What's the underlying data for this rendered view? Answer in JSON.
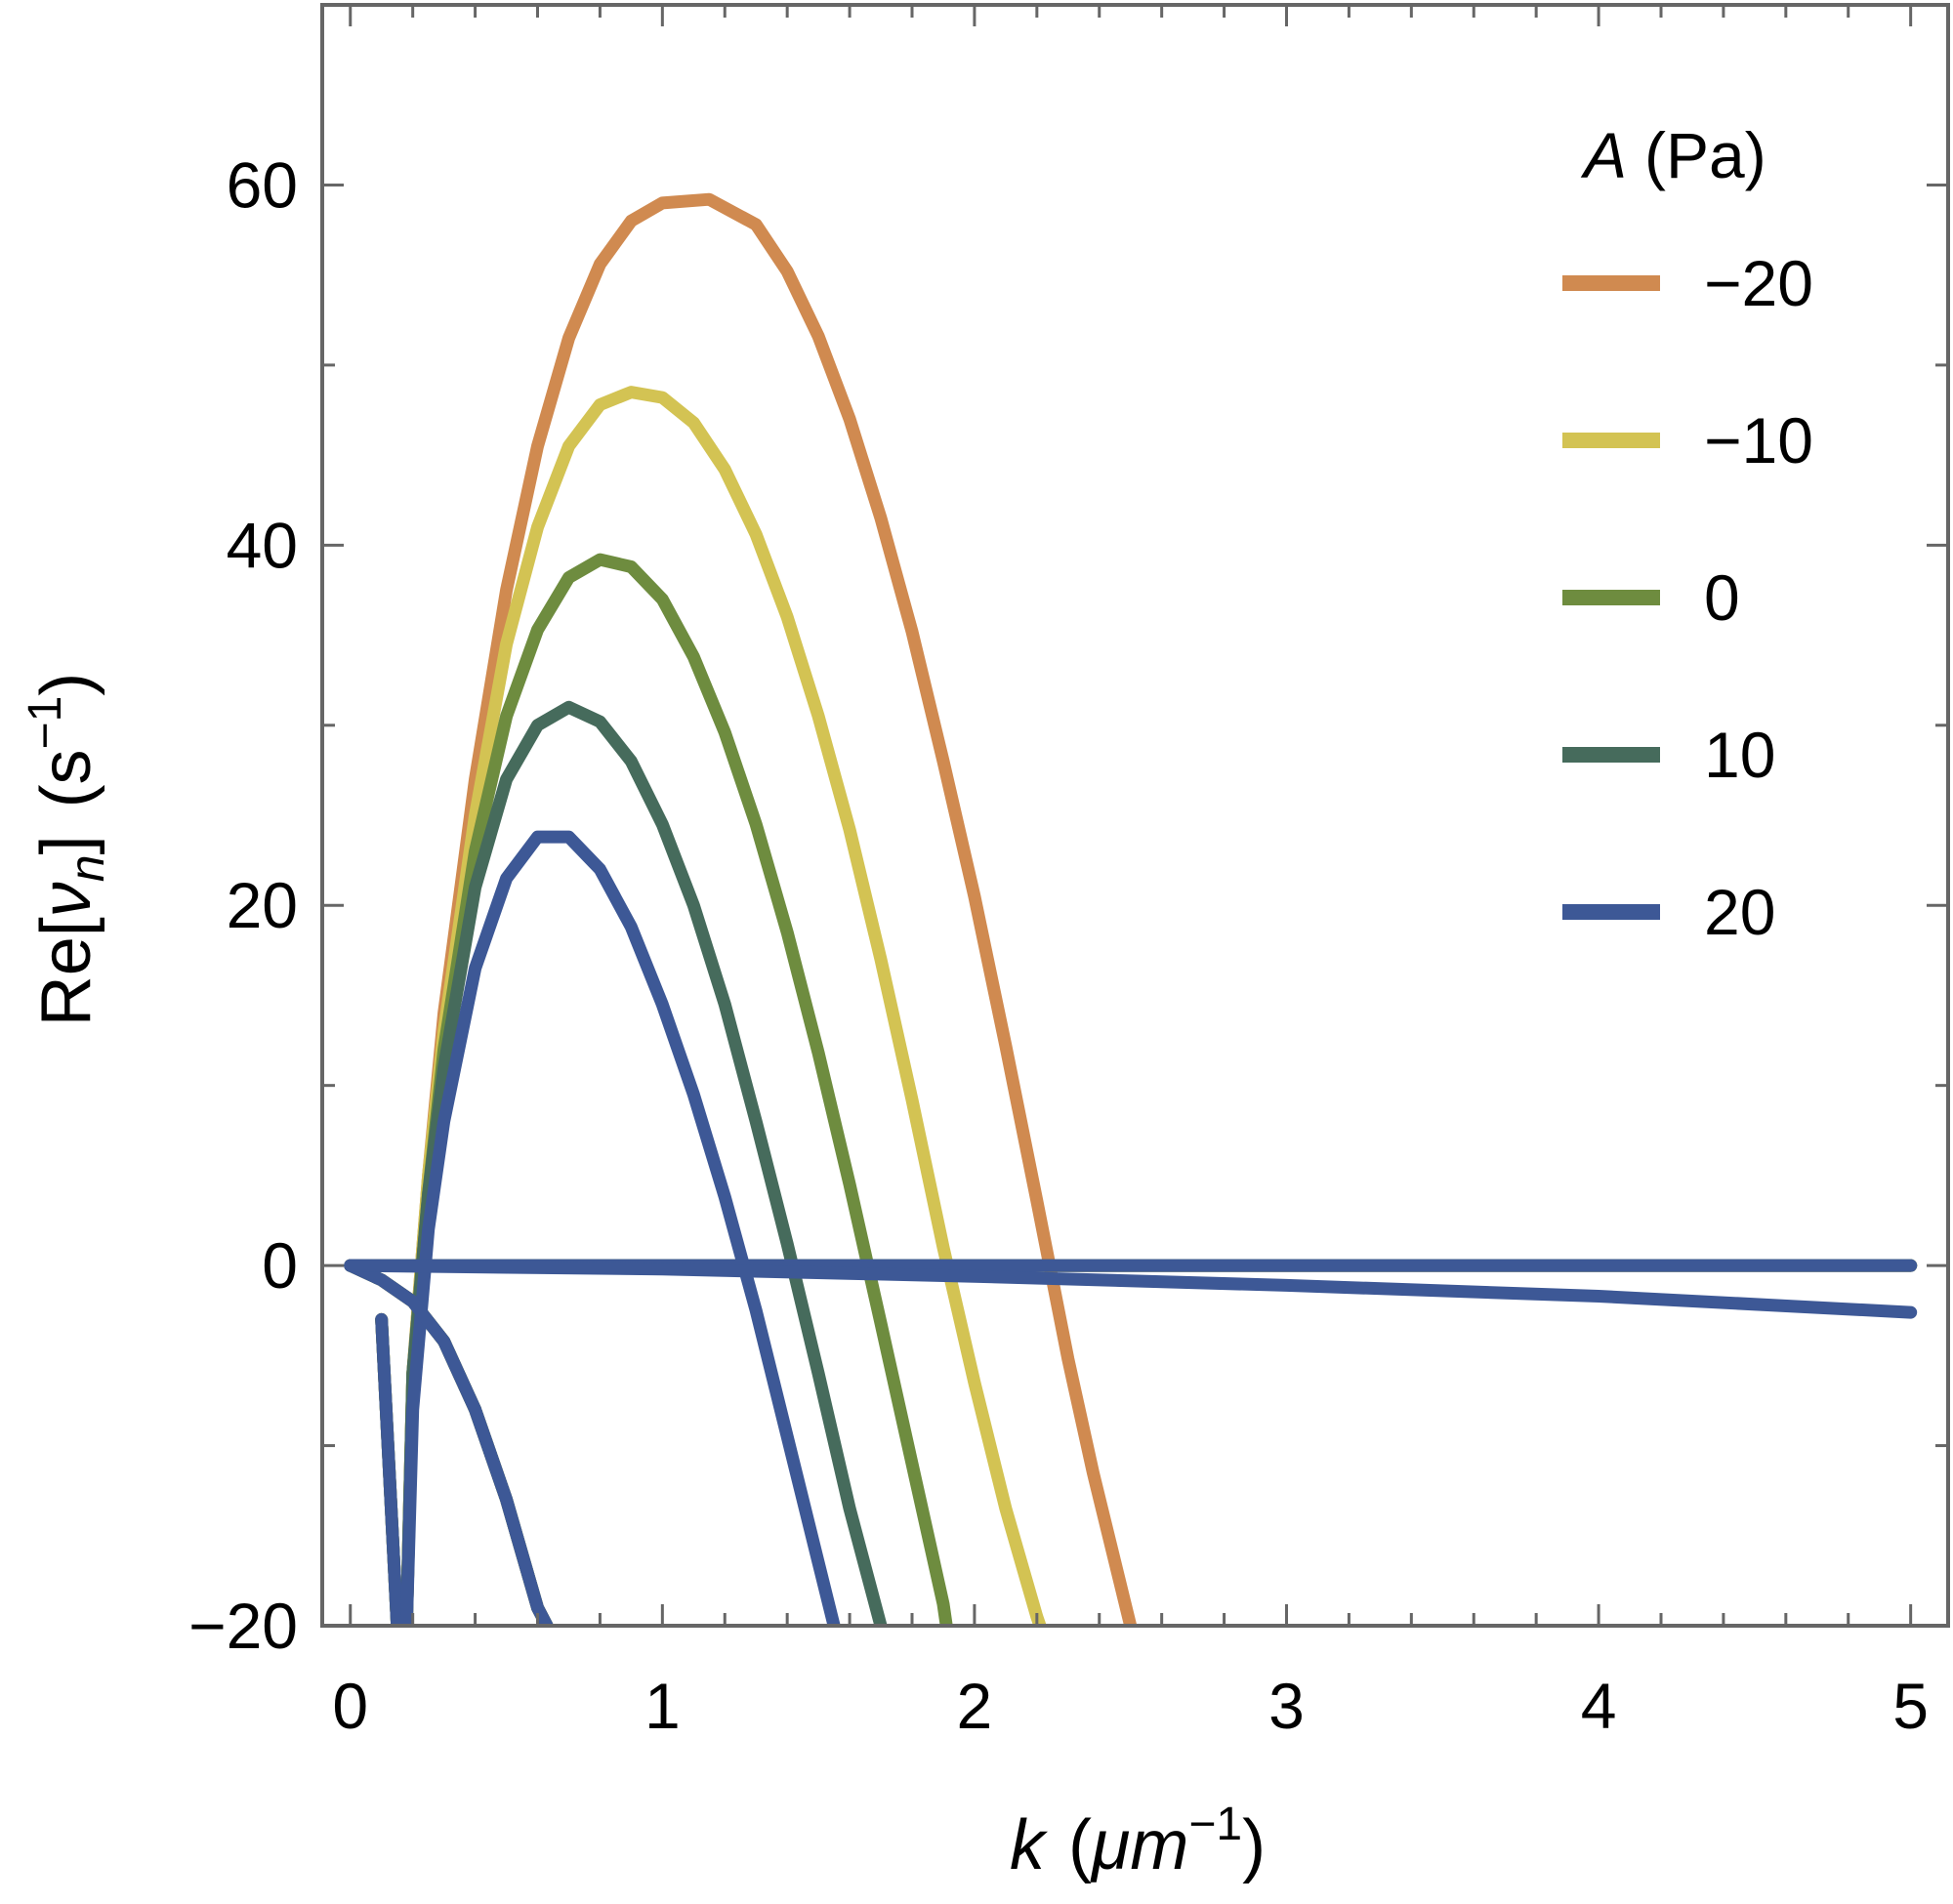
{
  "chart_data": {
    "type": "line",
    "xlabel": {
      "var": "k",
      "unit_prefix": "(",
      "unit": "μm",
      "exp": "−1",
      "unit_suffix": ")"
    },
    "ylabel": {
      "prefix": "Re[",
      "var": "ν",
      "sub": "n",
      "suffix": "]",
      "unit_prefix": "(s",
      "exp": "−1",
      "unit_suffix": ")"
    },
    "xlim": [
      -0.09,
      5.12
    ],
    "ylim": [
      -20,
      70
    ],
    "xticks": [
      "0",
      "1",
      "2",
      "3",
      "4",
      "5"
    ],
    "yticks": [
      "−20",
      "0",
      "20",
      "40",
      "60"
    ],
    "legend": {
      "title_var": "A",
      "title_unit": "(Pa)",
      "position": "top-right"
    },
    "series": [
      {
        "name": "−20",
        "A": -20,
        "color": "#d08a50",
        "branch1": [
          [
            0.1,
            -3
          ],
          [
            0.15,
            -20
          ]
        ],
        "branch2": [
          [
            0.18,
            -20
          ],
          [
            0.2,
            -6
          ],
          [
            0.25,
            5
          ],
          [
            0.3,
            14
          ],
          [
            0.4,
            27
          ],
          [
            0.5,
            37.5
          ],
          [
            0.6,
            45.5
          ],
          [
            0.7,
            51.5
          ],
          [
            0.8,
            55.6
          ],
          [
            0.9,
            58.0
          ],
          [
            1.0,
            59.0
          ],
          [
            1.15,
            59.2
          ],
          [
            1.3,
            57.8
          ],
          [
            1.4,
            55.2
          ],
          [
            1.5,
            51.6
          ],
          [
            1.6,
            47.0
          ],
          [
            1.7,
            41.5
          ],
          [
            1.8,
            35.2
          ],
          [
            1.9,
            28.0
          ],
          [
            2.0,
            20.5
          ],
          [
            2.1,
            12.2
          ],
          [
            2.2,
            3.6
          ],
          [
            2.3,
            -5.2
          ],
          [
            2.38,
            -11.5
          ],
          [
            2.5,
            -20
          ]
        ],
        "branch3": [
          [
            0.0,
            0
          ],
          [
            0.1,
            -0.8
          ],
          [
            0.2,
            -2.0
          ],
          [
            0.3,
            -4.2
          ],
          [
            0.4,
            -8.0
          ],
          [
            0.5,
            -13.0
          ],
          [
            0.6,
            -19.0
          ],
          [
            0.63,
            -20
          ]
        ],
        "branch4": [
          [
            0.0,
            0
          ],
          [
            5.0,
            0
          ]
        ]
      },
      {
        "name": "−10",
        "A": -10,
        "color": "#d3c353",
        "branch1": [
          [
            0.1,
            -3
          ],
          [
            0.15,
            -20
          ]
        ],
        "branch2": [
          [
            0.18,
            -20
          ],
          [
            0.2,
            -6
          ],
          [
            0.25,
            5
          ],
          [
            0.3,
            13
          ],
          [
            0.4,
            25
          ],
          [
            0.5,
            34.5
          ],
          [
            0.6,
            41
          ],
          [
            0.7,
            45.5
          ],
          [
            0.8,
            47.8
          ],
          [
            0.9,
            48.5
          ],
          [
            1.0,
            48.2
          ],
          [
            1.1,
            46.8
          ],
          [
            1.2,
            44.2
          ],
          [
            1.3,
            40.6
          ],
          [
            1.4,
            36.0
          ],
          [
            1.5,
            30.5
          ],
          [
            1.6,
            24.2
          ],
          [
            1.7,
            17.0
          ],
          [
            1.8,
            9.2
          ],
          [
            1.9,
            1.0
          ],
          [
            2.0,
            -6.5
          ],
          [
            2.1,
            -13.5
          ],
          [
            2.2,
            -19.5
          ],
          [
            2.21,
            -20
          ]
        ],
        "branch3": [
          [
            0.0,
            0
          ],
          [
            0.1,
            -0.8
          ],
          [
            0.2,
            -2.0
          ],
          [
            0.3,
            -4.2
          ],
          [
            0.4,
            -8.0
          ],
          [
            0.5,
            -13.0
          ],
          [
            0.6,
            -19.0
          ],
          [
            0.63,
            -20
          ]
        ],
        "branch4": [
          [
            0.0,
            0
          ],
          [
            5.0,
            0
          ]
        ]
      },
      {
        "name": "0",
        "A": 0,
        "color": "#6e8c3f",
        "branch1": [
          [
            0.1,
            -3
          ],
          [
            0.15,
            -20
          ]
        ],
        "branch2": [
          [
            0.18,
            -20
          ],
          [
            0.2,
            -6
          ],
          [
            0.25,
            4
          ],
          [
            0.3,
            12
          ],
          [
            0.4,
            23
          ],
          [
            0.5,
            30.5
          ],
          [
            0.6,
            35.3
          ],
          [
            0.7,
            38.2
          ],
          [
            0.8,
            39.2
          ],
          [
            0.9,
            38.8
          ],
          [
            1.0,
            37.0
          ],
          [
            1.1,
            33.8
          ],
          [
            1.2,
            29.6
          ],
          [
            1.3,
            24.5
          ],
          [
            1.4,
            18.5
          ],
          [
            1.5,
            11.8
          ],
          [
            1.6,
            4.5
          ],
          [
            1.7,
            -3.2
          ],
          [
            1.8,
            -11.0
          ],
          [
            1.9,
            -18.8
          ],
          [
            1.91,
            -20
          ]
        ],
        "branch3": [
          [
            0.0,
            0
          ],
          [
            0.1,
            -0.8
          ],
          [
            0.2,
            -2.0
          ],
          [
            0.3,
            -4.2
          ],
          [
            0.4,
            -8.0
          ],
          [
            0.5,
            -13.0
          ],
          [
            0.6,
            -19.0
          ],
          [
            0.63,
            -20
          ]
        ],
        "branch4": [
          [
            0.0,
            0
          ],
          [
            5.0,
            0
          ]
        ]
      },
      {
        "name": "10",
        "A": 10,
        "color": "#466b5c",
        "branch1": [
          [
            0.1,
            -3
          ],
          [
            0.15,
            -20
          ]
        ],
        "branch2": [
          [
            0.18,
            -20
          ],
          [
            0.2,
            -6
          ],
          [
            0.25,
            4
          ],
          [
            0.3,
            11
          ],
          [
            0.4,
            21
          ],
          [
            0.5,
            27
          ],
          [
            0.6,
            30.0
          ],
          [
            0.7,
            31.0
          ],
          [
            0.8,
            30.2
          ],
          [
            0.9,
            28.0
          ],
          [
            1.0,
            24.5
          ],
          [
            1.1,
            20.0
          ],
          [
            1.2,
            14.5
          ],
          [
            1.3,
            8.0
          ],
          [
            1.4,
            1.2
          ],
          [
            1.5,
            -6.0
          ],
          [
            1.6,
            -13.5
          ],
          [
            1.7,
            -20
          ]
        ],
        "branch3": [
          [
            0.0,
            0
          ],
          [
            0.1,
            -0.8
          ],
          [
            0.2,
            -2.0
          ],
          [
            0.3,
            -4.2
          ],
          [
            0.4,
            -8.0
          ],
          [
            0.5,
            -13.0
          ],
          [
            0.6,
            -19.0
          ],
          [
            0.63,
            -20
          ]
        ],
        "branch4": [
          [
            0.0,
            0
          ],
          [
            5.0,
            0
          ]
        ]
      },
      {
        "name": "20",
        "A": 20,
        "color": "#3d5896",
        "branch1": [
          [
            0.1,
            -3
          ],
          [
            0.15,
            -20
          ]
        ],
        "branch2": [
          [
            0.18,
            -20
          ],
          [
            0.2,
            -8
          ],
          [
            0.25,
            2
          ],
          [
            0.3,
            8
          ],
          [
            0.4,
            16.5
          ],
          [
            0.5,
            21.5
          ],
          [
            0.6,
            23.8
          ],
          [
            0.7,
            23.8
          ],
          [
            0.8,
            22.0
          ],
          [
            0.9,
            18.8
          ],
          [
            1.0,
            14.5
          ],
          [
            1.1,
            9.5
          ],
          [
            1.2,
            3.8
          ],
          [
            1.3,
            -2.5
          ],
          [
            1.4,
            -9.5
          ],
          [
            1.5,
            -16.5
          ],
          [
            1.55,
            -20
          ]
        ],
        "branch3": [
          [
            0.0,
            0
          ],
          [
            0.1,
            -0.8
          ],
          [
            0.2,
            -2.0
          ],
          [
            0.3,
            -4.2
          ],
          [
            0.4,
            -8.0
          ],
          [
            0.5,
            -13.0
          ],
          [
            0.6,
            -19.0
          ],
          [
            0.63,
            -20
          ]
        ],
        "branch4": [
          [
            0.0,
            0
          ],
          [
            5.0,
            0
          ]
        ]
      }
    ],
    "extra_tail": {
      "color": "#3d5896",
      "points": [
        [
          0.0,
          0
        ],
        [
          1.0,
          -0.2
        ],
        [
          2.0,
          -0.6
        ],
        [
          3.0,
          -1.1
        ],
        [
          4.0,
          -1.7
        ],
        [
          5.0,
          -2.6
        ]
      ]
    }
  }
}
